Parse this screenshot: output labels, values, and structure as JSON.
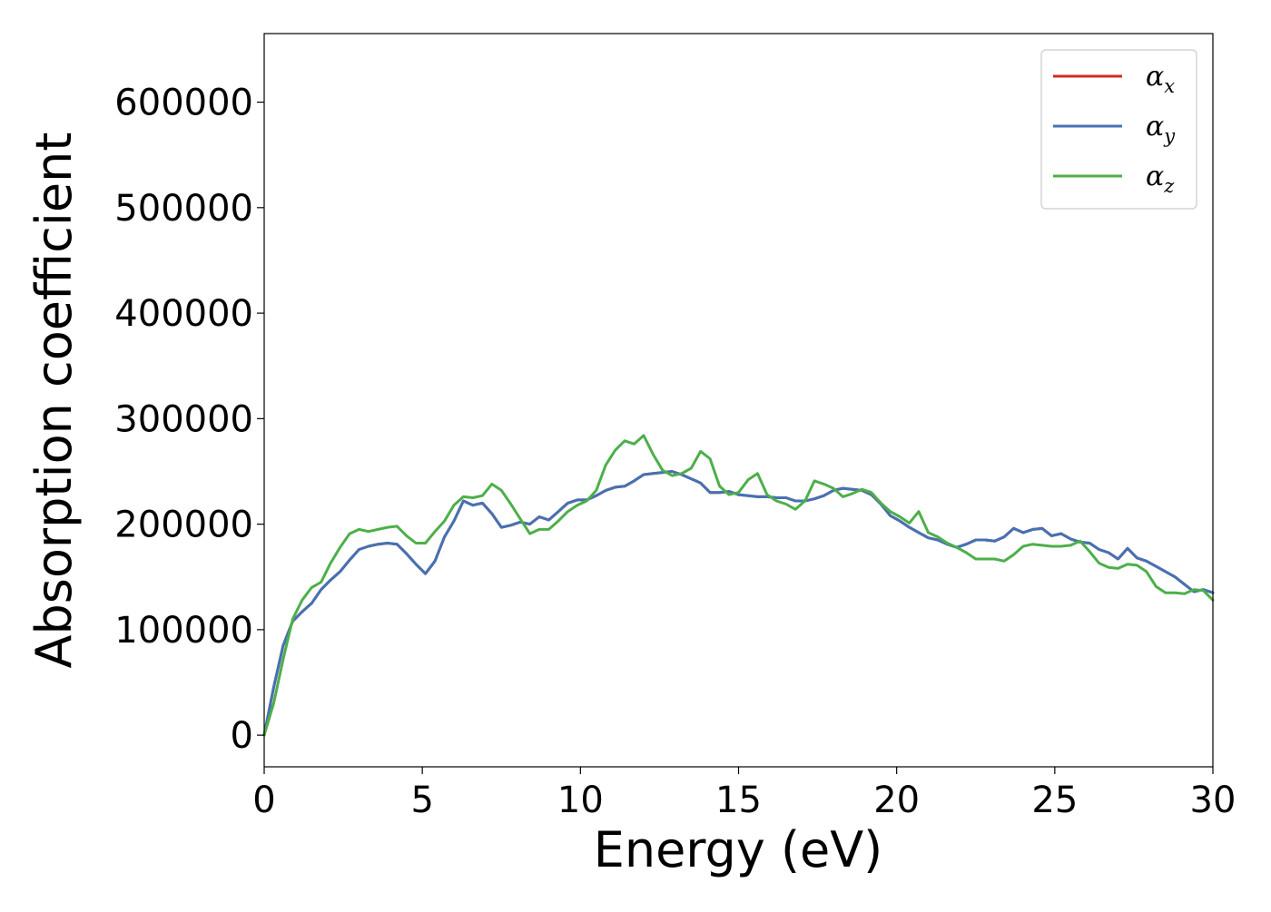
{
  "chart_data": {
    "type": "line",
    "title": "",
    "xlabel": "Energy (eV)",
    "ylabel": "Absorption coefficient",
    "xlim": [
      0,
      30
    ],
    "ylim": [
      -30000,
      665000
    ],
    "xticks": [
      0,
      5,
      10,
      15,
      20,
      25,
      30
    ],
    "xtick_labels": [
      "0",
      "5",
      "10",
      "15",
      "20",
      "25",
      "30"
    ],
    "yticks": [
      0,
      100000,
      200000,
      300000,
      400000,
      500000,
      600000
    ],
    "ytick_labels": [
      "0",
      "100000",
      "200000",
      "300000",
      "400000",
      "500000",
      "600000"
    ],
    "grid": false,
    "legend_position": "top-right",
    "series": [
      {
        "name": "α",
        "subscript": "x",
        "color": "#d62728",
        "x": [
          0,
          0.3,
          0.6,
          0.9,
          1.2,
          1.5,
          1.8,
          2.1,
          2.4,
          2.7,
          3.0,
          3.3,
          3.6,
          3.9,
          4.2,
          4.5,
          4.8,
          5.1,
          5.4,
          5.7,
          6.0,
          6.3,
          6.6,
          6.9,
          7.2,
          7.5,
          7.8,
          8.1,
          8.4,
          8.7,
          9.0,
          9.3,
          9.6,
          9.9,
          10.2,
          10.5,
          10.8,
          11.1,
          11.4,
          11.7,
          12.0,
          12.3,
          12.6,
          12.9,
          13.2,
          13.5,
          13.8,
          14.1,
          14.4,
          14.7,
          15.0,
          15.3,
          15.6,
          15.9,
          16.2,
          16.5,
          16.8,
          17.1,
          17.4,
          17.7,
          18.0,
          18.3,
          18.6,
          18.9,
          19.2,
          19.5,
          19.8,
          20.1,
          20.4,
          20.7,
          21.0,
          21.3,
          21.6,
          21.9,
          22.2,
          22.5,
          22.8,
          23.1,
          23.4,
          23.7,
          24.0,
          24.3,
          24.6,
          24.9,
          25.2,
          25.5,
          25.8,
          26.1,
          26.4,
          26.7,
          27.0,
          27.3,
          27.6,
          27.9,
          28.2,
          28.5,
          28.8,
          29.1,
          29.4,
          29.7,
          30.0
        ],
        "y": [
          0,
          45000,
          85000,
          108000,
          117000,
          125000,
          138000,
          147000,
          155000,
          166000,
          176000,
          179000,
          181000,
          182000,
          181000,
          172000,
          162000,
          153000,
          165000,
          188000,
          203000,
          222000,
          218000,
          220000,
          210000,
          197000,
          199000,
          202000,
          200000,
          207000,
          204000,
          212000,
          220000,
          223000,
          223000,
          227000,
          232000,
          235000,
          236000,
          241000,
          247000,
          248000,
          249000,
          250000,
          247000,
          243000,
          239000,
          230000,
          230000,
          231000,
          228000,
          227000,
          226000,
          226000,
          225000,
          225000,
          222000,
          222000,
          224000,
          227000,
          232000,
          234000,
          233000,
          232000,
          228000,
          219000,
          208000,
          203000,
          197000,
          192000,
          187000,
          185000,
          181000,
          178000,
          181000,
          185000,
          185000,
          184000,
          188000,
          196000,
          192000,
          195000,
          196000,
          189000,
          191000,
          186000,
          183000,
          182000,
          176000,
          173000,
          167000,
          177000,
          168000,
          165000,
          160000,
          155000,
          150000,
          143000,
          136000,
          138000,
          135000
        ]
      },
      {
        "name": "α",
        "subscript": "y",
        "color": "#4472b4",
        "x": [
          0,
          0.3,
          0.6,
          0.9,
          1.2,
          1.5,
          1.8,
          2.1,
          2.4,
          2.7,
          3.0,
          3.3,
          3.6,
          3.9,
          4.2,
          4.5,
          4.8,
          5.1,
          5.4,
          5.7,
          6.0,
          6.3,
          6.6,
          6.9,
          7.2,
          7.5,
          7.8,
          8.1,
          8.4,
          8.7,
          9.0,
          9.3,
          9.6,
          9.9,
          10.2,
          10.5,
          10.8,
          11.1,
          11.4,
          11.7,
          12.0,
          12.3,
          12.6,
          12.9,
          13.2,
          13.5,
          13.8,
          14.1,
          14.4,
          14.7,
          15.0,
          15.3,
          15.6,
          15.9,
          16.2,
          16.5,
          16.8,
          17.1,
          17.4,
          17.7,
          18.0,
          18.3,
          18.6,
          18.9,
          19.2,
          19.5,
          19.8,
          20.1,
          20.4,
          20.7,
          21.0,
          21.3,
          21.6,
          21.9,
          22.2,
          22.5,
          22.8,
          23.1,
          23.4,
          23.7,
          24.0,
          24.3,
          24.6,
          24.9,
          25.2,
          25.5,
          25.8,
          26.1,
          26.4,
          26.7,
          27.0,
          27.3,
          27.6,
          27.9,
          28.2,
          28.5,
          28.8,
          29.1,
          29.4,
          29.7,
          30.0
        ],
        "y": [
          0,
          45000,
          85000,
          108000,
          117000,
          125000,
          138000,
          147000,
          155000,
          166000,
          176000,
          179000,
          181000,
          182000,
          181000,
          172000,
          162000,
          153000,
          165000,
          188000,
          203000,
          222000,
          218000,
          220000,
          210000,
          197000,
          199000,
          202000,
          200000,
          207000,
          204000,
          212000,
          220000,
          223000,
          223000,
          227000,
          232000,
          235000,
          236000,
          241000,
          247000,
          248000,
          249000,
          250000,
          247000,
          243000,
          239000,
          230000,
          230000,
          231000,
          228000,
          227000,
          226000,
          226000,
          225000,
          225000,
          222000,
          222000,
          224000,
          227000,
          232000,
          234000,
          233000,
          232000,
          228000,
          219000,
          208000,
          203000,
          197000,
          192000,
          187000,
          185000,
          181000,
          178000,
          181000,
          185000,
          185000,
          184000,
          188000,
          196000,
          192000,
          195000,
          196000,
          189000,
          191000,
          186000,
          183000,
          182000,
          176000,
          173000,
          167000,
          177000,
          168000,
          165000,
          160000,
          155000,
          150000,
          143000,
          136000,
          138000,
          135000
        ]
      },
      {
        "name": "α",
        "subscript": "z",
        "color": "#4daf4a",
        "x": [
          0,
          0.3,
          0.6,
          0.9,
          1.2,
          1.5,
          1.8,
          2.1,
          2.4,
          2.7,
          3.0,
          3.3,
          3.6,
          3.9,
          4.2,
          4.5,
          4.8,
          5.1,
          5.4,
          5.7,
          6.0,
          6.3,
          6.6,
          6.9,
          7.2,
          7.5,
          7.8,
          8.1,
          8.4,
          8.7,
          9.0,
          9.3,
          9.6,
          9.9,
          10.2,
          10.5,
          10.8,
          11.1,
          11.4,
          11.7,
          12.0,
          12.3,
          12.6,
          12.9,
          13.2,
          13.5,
          13.8,
          14.1,
          14.4,
          14.7,
          15.0,
          15.3,
          15.6,
          15.9,
          16.2,
          16.5,
          16.8,
          17.1,
          17.4,
          17.7,
          18.0,
          18.3,
          18.6,
          18.9,
          19.2,
          19.5,
          19.8,
          20.1,
          20.4,
          20.7,
          21.0,
          21.3,
          21.6,
          21.9,
          22.2,
          22.5,
          22.8,
          23.1,
          23.4,
          23.7,
          24.0,
          24.3,
          24.6,
          24.9,
          25.2,
          25.5,
          25.8,
          26.1,
          26.4,
          26.7,
          27.0,
          27.3,
          27.6,
          27.9,
          28.2,
          28.5,
          28.8,
          29.1,
          29.4,
          29.7,
          30.0
        ],
        "y": [
          0,
          30000,
          72000,
          110000,
          128000,
          140000,
          145000,
          163000,
          178000,
          191000,
          195000,
          193000,
          195000,
          197000,
          198000,
          189000,
          182000,
          182000,
          193000,
          203000,
          218000,
          226000,
          225000,
          227000,
          238000,
          232000,
          219000,
          205000,
          191000,
          195000,
          195000,
          203000,
          212000,
          218000,
          222000,
          232000,
          256000,
          270000,
          279000,
          276000,
          284000,
          266000,
          251000,
          246000,
          248000,
          253000,
          269000,
          262000,
          236000,
          228000,
          230000,
          242000,
          248000,
          228000,
          222000,
          219000,
          214000,
          222000,
          241000,
          238000,
          234000,
          226000,
          229000,
          233000,
          230000,
          220000,
          212000,
          207000,
          201000,
          212000,
          192000,
          188000,
          182000,
          178000,
          173000,
          167000,
          167000,
          167000,
          165000,
          171000,
          179000,
          181000,
          180000,
          179000,
          179000,
          180000,
          184000,
          174000,
          163000,
          159000,
          158000,
          162000,
          161000,
          155000,
          141000,
          135000,
          135000,
          134000,
          138000,
          137000,
          128000
        ]
      }
    ]
  }
}
